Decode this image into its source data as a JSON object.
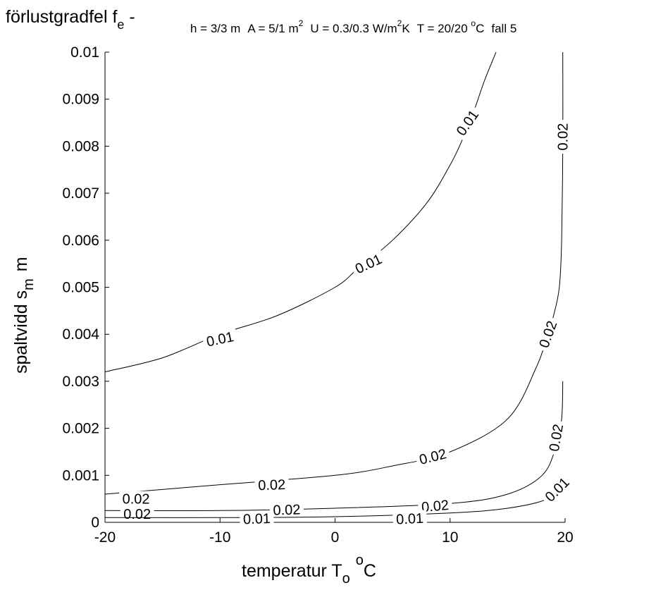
{
  "chart_data": {
    "type": "contour",
    "title": {
      "prefix": "förlustgradfel f",
      "prefix_sub": "e",
      "dash": " -",
      "h": "h = 3/3 m",
      "a": "A = 5/1 m",
      "a_sup": "2",
      "u": "U = 0.3/0.3 W/m",
      "u_sup": "2",
      "u_unit": "K",
      "t": "T = 20/20 ",
      "t_sup": "o",
      "t_unit": "C",
      "case": "fall 5"
    },
    "xlabel": {
      "text": "temperatur  T",
      "sub": "o",
      "sup": "o",
      "unit": "C"
    },
    "ylabel": {
      "text": "spaltvidd  s",
      "sub": "m",
      "unit": "m"
    },
    "xlim": [
      -20,
      20
    ],
    "ylim": [
      0,
      0.01
    ],
    "x_ticks": [
      {
        "value": -20,
        "label": "-20"
      },
      {
        "value": -10,
        "label": "-10"
      },
      {
        "value": 0,
        "label": "0"
      },
      {
        "value": 10,
        "label": "10"
      },
      {
        "value": 20,
        "label": "20"
      }
    ],
    "y_ticks": [
      {
        "value": 0,
        "label": "0"
      },
      {
        "value": 0.001,
        "label": "0.001"
      },
      {
        "value": 0.002,
        "label": "0.002"
      },
      {
        "value": 0.003,
        "label": "0.003"
      },
      {
        "value": 0.004,
        "label": "0.004"
      },
      {
        "value": 0.005,
        "label": "0.005"
      },
      {
        "value": 0.006,
        "label": "0.006"
      },
      {
        "value": 0.007,
        "label": "0.007"
      },
      {
        "value": 0.008,
        "label": "0.008"
      },
      {
        "value": 0.009,
        "label": "0.009"
      },
      {
        "value": 0.01,
        "label": "0.01"
      }
    ],
    "grid": false,
    "box": "left-bottom",
    "contours": [
      {
        "level": "0.01",
        "points": [
          [
            -20,
            0.0032
          ],
          [
            -15,
            0.0035
          ],
          [
            -10,
            0.004
          ],
          [
            -5,
            0.0044
          ],
          [
            0,
            0.005
          ],
          [
            2,
            0.0054
          ],
          [
            5,
            0.006
          ],
          [
            8,
            0.0068
          ],
          [
            10,
            0.0076
          ],
          [
            11,
            0.0081
          ],
          [
            12,
            0.0087
          ],
          [
            13,
            0.0094
          ],
          [
            14,
            0.01
          ]
        ],
        "labels": [
          {
            "text": "0.01",
            "x": -10,
            "y": 0.0039,
            "angle": -12
          },
          {
            "text": "0.01",
            "x": 2.9,
            "y": 0.0055,
            "angle": -25
          },
          {
            "text": "0.01",
            "x": 11.5,
            "y": 0.0085,
            "angle": -55
          }
        ]
      },
      {
        "level": "0.02",
        "points": [
          [
            19.8,
            0.01
          ],
          [
            19.8,
            0.008
          ],
          [
            19.7,
            0.006
          ],
          [
            19.5,
            0.005
          ],
          [
            19.0,
            0.0044
          ],
          [
            18.5,
            0.004
          ],
          [
            17.5,
            0.0033
          ],
          [
            15,
            0.0022
          ],
          [
            10,
            0.0015
          ],
          [
            5,
            0.0012
          ],
          [
            0,
            0.001
          ],
          [
            -10,
            0.0008
          ],
          [
            -20,
            0.0006
          ]
        ],
        "labels": [
          {
            "text": "0.02",
            "x": 19.8,
            "y": 0.0082,
            "angle": -90
          },
          {
            "text": "0.02",
            "x": 18.5,
            "y": 0.004,
            "angle": -70
          },
          {
            "text": "0.02",
            "x": 8.5,
            "y": 0.0014,
            "angle": -14
          },
          {
            "text": "0.02",
            "x": -5.5,
            "y": 0.0008,
            "angle": -2
          },
          {
            "text": "0.02",
            "x": -17.3,
            "y": 0.0005,
            "angle": 0
          }
        ]
      },
      {
        "level": "0.02",
        "points": [
          [
            19.8,
            0.003
          ],
          [
            19.7,
            0.0022
          ],
          [
            19.2,
            0.0016
          ],
          [
            18.0,
            0.001
          ],
          [
            15,
            0.0006
          ],
          [
            10,
            0.0004
          ],
          [
            0,
            0.0003
          ],
          [
            -10,
            0.00025
          ],
          [
            -20,
            0.00025
          ]
        ],
        "labels": [
          {
            "text": "0.02",
            "x": 19.2,
            "y": 0.0018,
            "angle": -80
          },
          {
            "text": "0.02",
            "x": 8.7,
            "y": 0.00035,
            "angle": -5
          },
          {
            "text": "0.02",
            "x": -4.2,
            "y": 0.00027,
            "angle": -2
          },
          {
            "text": "0.02",
            "x": -17.2,
            "y": 0.00018,
            "angle": 0
          }
        ]
      },
      {
        "level": "0.01",
        "points": [
          [
            19.9,
            0.001
          ],
          [
            19.5,
            0.0008
          ],
          [
            18.5,
            0.0005
          ],
          [
            15,
            0.0003
          ],
          [
            10,
            0.0002
          ],
          [
            0,
            0.00012
          ],
          [
            -10,
            0.0001
          ],
          [
            -20,
            0.0001
          ]
        ],
        "labels": [
          {
            "text": "0.01",
            "x": 19.3,
            "y": 0.0007,
            "angle": -45
          },
          {
            "text": "0.01",
            "x": 6.5,
            "y": 8e-05,
            "angle": -3
          },
          {
            "text": "0.01",
            "x": -6.8,
            "y": 8e-05,
            "angle": -2
          }
        ]
      }
    ]
  }
}
